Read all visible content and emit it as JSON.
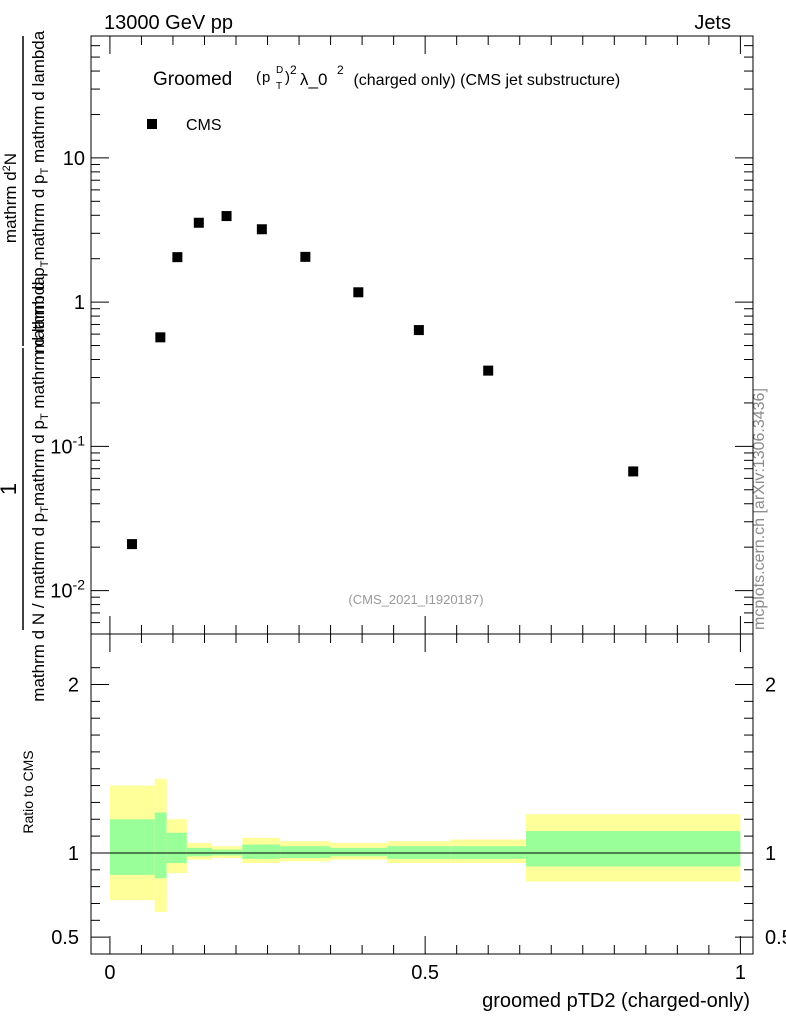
{
  "header": {
    "left": "13000 GeV pp",
    "right": "Jets"
  },
  "watermark": "mcplots.cern.ch [arXiv:1306.3436]",
  "analysis_tag": "(CMS_2021_I1920187)",
  "colors": {
    "outer_band": "#ffff99",
    "inner_band": "#99ff99",
    "marker": "#000000",
    "ratio_line": "#000000"
  },
  "chart_data": [
    {
      "type": "scatter",
      "panel": "main",
      "title": {
        "prefix": "Groomed",
        "formula": {
          "p": "p",
          "sub": "T",
          "sup": "D",
          "exp": "2",
          "lambda": "λ_0",
          "lambda_exp": "2"
        },
        "suffix": " (charged only) (CMS jet substructure)"
      },
      "ylabel": {
        "numerator": "1",
        "denominator": "mathrm d N / mathrm d p_T mathrm d p_T mathrm d lambda",
        "frac_outer": "mathrm d²N",
        "frac_inner": "mathrm d p_T mathrm d p_T mathrm d lambda",
        "outer_parts": {
          "pre": "mathrm d",
          "sup": "2",
          "post": "N"
        },
        "outer_denom_parts": {
          "p1": "mathrm d p",
          "s1": "T",
          "mid": "mathrm d p",
          "s2": "T",
          "post": " mathrm d lambda"
        },
        "inner_denom_parts": {
          "pre": "mathrm d N / mathrm d p",
          "s1": "T",
          "mid": "mathrm d p",
          "s2": "T",
          "post": " mathrm d lambda"
        }
      },
      "yscale": "log",
      "ylim": [
        0.005,
        70
      ],
      "xlim": [
        -0.03,
        1.02
      ],
      "yticks": [
        {
          "value": 0.01,
          "base": "10",
          "exp": "-2"
        },
        {
          "value": 0.1,
          "base": "10",
          "exp": "-1"
        },
        {
          "value": 1,
          "label": "1"
        },
        {
          "value": 10,
          "label": "10"
        }
      ],
      "legend": {
        "position": "top-left",
        "entries": [
          "CMS"
        ]
      },
      "series": [
        {
          "name": "CMS",
          "x": [
            0.035,
            0.08,
            0.107,
            0.141,
            0.185,
            0.241,
            0.31,
            0.394,
            0.49,
            0.6,
            0.83
          ],
          "y": [
            0.021,
            0.57,
            2.05,
            3.55,
            3.95,
            3.2,
            2.06,
            1.17,
            0.64,
            0.335,
            0.067
          ]
        }
      ]
    },
    {
      "type": "area",
      "panel": "ratio",
      "ylabel": "Ratio to CMS",
      "xlabel": "groomed pTD2 (charged-only)",
      "xlim": [
        -0.03,
        1.02
      ],
      "ylim": [
        0.4,
        2.3
      ],
      "yticks": [
        {
          "value": 0.5,
          "label": "0.5"
        },
        {
          "value": 1,
          "label": "1"
        },
        {
          "value": 2,
          "label": "2"
        }
      ],
      "xticks": [
        {
          "value": 0,
          "label": "0"
        },
        {
          "value": 0.5,
          "label": "0.5"
        },
        {
          "value": 1,
          "label": "1"
        }
      ],
      "bins": [
        {
          "x0": 0.0,
          "x1": 0.071,
          "outer": [
            0.72,
            1.4
          ],
          "inner": [
            0.87,
            1.2
          ]
        },
        {
          "x0": 0.071,
          "x1": 0.09,
          "outer": [
            0.65,
            1.44
          ],
          "inner": [
            0.85,
            1.24
          ]
        },
        {
          "x0": 0.09,
          "x1": 0.122,
          "outer": [
            0.88,
            1.2
          ],
          "inner": [
            0.94,
            1.12
          ]
        },
        {
          "x0": 0.122,
          "x1": 0.162,
          "outer": [
            0.96,
            1.06
          ],
          "inner": [
            0.98,
            1.03
          ]
        },
        {
          "x0": 0.162,
          "x1": 0.21,
          "outer": [
            0.97,
            1.04
          ],
          "inner": [
            0.985,
            1.02
          ]
        },
        {
          "x0": 0.21,
          "x1": 0.27,
          "outer": [
            0.94,
            1.09
          ],
          "inner": [
            0.965,
            1.05
          ]
        },
        {
          "x0": 0.27,
          "x1": 0.35,
          "outer": [
            0.95,
            1.07
          ],
          "inner": [
            0.97,
            1.04
          ]
        },
        {
          "x0": 0.35,
          "x1": 0.44,
          "outer": [
            0.96,
            1.06
          ],
          "inner": [
            0.98,
            1.03
          ]
        },
        {
          "x0": 0.44,
          "x1": 0.54,
          "outer": [
            0.94,
            1.07
          ],
          "inner": [
            0.965,
            1.04
          ]
        },
        {
          "x0": 0.54,
          "x1": 0.66,
          "outer": [
            0.94,
            1.08
          ],
          "inner": [
            0.965,
            1.04
          ]
        },
        {
          "x0": 0.66,
          "x1": 1.0,
          "outer": [
            0.83,
            1.23
          ],
          "inner": [
            0.92,
            1.13
          ]
        }
      ]
    }
  ]
}
